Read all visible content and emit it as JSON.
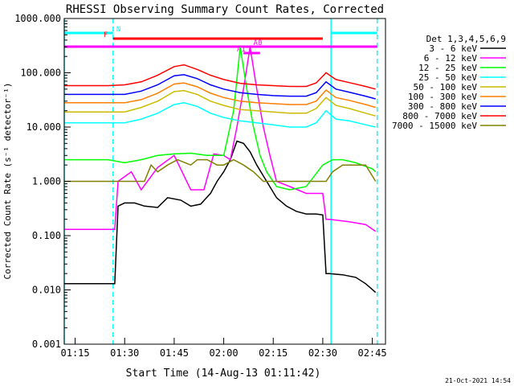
{
  "chart_data": {
    "type": "line",
    "title": "RHESSI Observing Summary Count Rates, Corrected",
    "ylabel": "Corrected Count Rate (s⁻¹ detector⁻¹)",
    "xlabel": "Start Time (14-Aug-13 01:11:42)",
    "timestamp": "21-Oct-2021 14:54",
    "y_scale": "log",
    "ylim": [
      0.001,
      1000
    ],
    "xlim": [
      "01:11:42",
      "02:49:00"
    ],
    "x_ticks": [
      "01:15",
      "01:30",
      "01:45",
      "02:00",
      "02:15",
      "02:30",
      "02:45"
    ],
    "y_ticks": [
      "1000.000",
      "100.000",
      "10.000",
      "1.000",
      "0.100",
      "0.010",
      "0.001"
    ],
    "legend": {
      "title": "Det 1,3,4,5,6,9",
      "placement": "right",
      "entries": [
        "3 - 6 keV",
        "6 - 12 keV",
        "12 - 25 keV",
        "25 - 50 keV",
        "50 - 100 keV",
        "100 - 300 keV",
        "300 - 800 keV",
        "800 - 7000 keV",
        "7000 - 15000 keV"
      ]
    },
    "series": [
      {
        "name": "3 - 6 keV",
        "color": "#000000",
        "x": [
          "01:11:42",
          "01:25:00",
          "01:27:00",
          "01:28:00",
          "01:30:00",
          "01:33:00",
          "01:36:00",
          "01:40:00",
          "01:43:00",
          "01:47:00",
          "01:50:00",
          "01:53:00",
          "01:56:00",
          "01:58:00",
          "02:00:00",
          "02:02:00",
          "02:04:00",
          "02:06:00",
          "02:08:00",
          "02:10:00",
          "02:13:00",
          "02:16:00",
          "02:19:00",
          "02:22:00",
          "02:25:00",
          "02:28:00",
          "02:30:00",
          "02:31:00",
          "02:32:00",
          "02:36:00",
          "02:40:00",
          "02:43:00",
          "02:46:00"
        ],
        "y": [
          0.013,
          0.013,
          0.013,
          0.35,
          0.4,
          0.4,
          0.35,
          0.33,
          0.5,
          0.45,
          0.35,
          0.38,
          0.6,
          1.0,
          1.5,
          2.5,
          5.5,
          5.0,
          3.5,
          2.0,
          1.0,
          0.5,
          0.35,
          0.28,
          0.25,
          0.25,
          0.24,
          0.02,
          0.02,
          0.019,
          0.017,
          0.013,
          0.009
        ]
      },
      {
        "name": "6 - 12 keV",
        "color": "#ff00ff",
        "x": [
          "01:11:42",
          "01:25:00",
          "01:27:00",
          "01:28:00",
          "01:32:00",
          "01:35:00",
          "01:40:00",
          "01:45:00",
          "01:50:00",
          "01:54:00",
          "01:57:00",
          "02:00:00",
          "02:02:00",
          "02:04:00",
          "02:06:00",
          "02:08:00",
          "02:10:00",
          "02:12:00",
          "02:14:00",
          "02:16:00",
          "02:20:00",
          "02:25:00",
          "02:30:00",
          "02:31:00",
          "02:32:00",
          "02:38:00",
          "02:43:00",
          "02:46:00"
        ],
        "y": [
          0.13,
          0.13,
          0.13,
          1.0,
          1.5,
          0.7,
          1.8,
          3.0,
          0.7,
          0.7,
          3.2,
          3.0,
          2.5,
          10,
          50,
          300,
          50,
          10,
          3,
          1.0,
          0.8,
          0.6,
          0.6,
          0.2,
          0.2,
          0.18,
          0.16,
          0.12
        ]
      },
      {
        "name": "12 - 25 keV",
        "color": "#00ff00",
        "x": [
          "01:11:42",
          "01:20:00",
          "01:25:00",
          "01:30:00",
          "01:35:00",
          "01:40:00",
          "01:45:00",
          "01:50:00",
          "01:55:00",
          "02:00:00",
          "02:03:00",
          "02:05:00",
          "02:07:00",
          "02:09:00",
          "02:11:00",
          "02:13:00",
          "02:16:00",
          "02:20:00",
          "02:25:00",
          "02:30:00",
          "02:33:00",
          "02:36:00",
          "02:40:00",
          "02:45:00",
          "02:46:00"
        ],
        "y": [
          2.5,
          2.5,
          2.5,
          2.2,
          2.5,
          3.0,
          3.2,
          3.3,
          3.0,
          3.0,
          20,
          300,
          50,
          10,
          3,
          1.5,
          0.8,
          0.7,
          0.8,
          2.0,
          2.5,
          2.5,
          2.2,
          1.7,
          1.5
        ]
      },
      {
        "name": "25 - 50 keV",
        "color": "#00ffff",
        "x": [
          "01:11:42",
          "01:20:00",
          "01:25:00",
          "01:30:00",
          "01:35:00",
          "01:40:00",
          "01:45:00",
          "01:48:00",
          "01:52:00",
          "01:56:00",
          "02:00:00",
          "02:05:00",
          "02:10:00",
          "02:15:00",
          "02:20:00",
          "02:25:00",
          "02:28:00",
          "02:31:00",
          "02:34:00",
          "02:38:00",
          "02:43:00",
          "02:46:00"
        ],
        "y": [
          12,
          12,
          12,
          12,
          14,
          18,
          26,
          28,
          24,
          18,
          15,
          13,
          12,
          11,
          10,
          10,
          12,
          20,
          14,
          13,
          11,
          10
        ]
      },
      {
        "name": "50 - 100 keV",
        "color": "#ccbb00",
        "x": [
          "01:11:42",
          "01:20:00",
          "01:25:00",
          "01:30:00",
          "01:35:00",
          "01:40:00",
          "01:45:00",
          "01:48:00",
          "01:52:00",
          "01:56:00",
          "02:00:00",
          "02:05:00",
          "02:10:00",
          "02:15:00",
          "02:20:00",
          "02:25:00",
          "02:28:00",
          "02:31:00",
          "02:34:00",
          "02:38:00",
          "02:43:00",
          "02:46:00"
        ],
        "y": [
          19,
          19,
          19,
          19,
          23,
          30,
          45,
          47,
          40,
          30,
          25,
          21,
          20,
          19,
          18,
          18,
          22,
          35,
          25,
          22,
          18,
          16
        ]
      },
      {
        "name": "100 - 300 keV",
        "color": "#ff7f00",
        "x": [
          "01:11:42",
          "01:20:00",
          "01:25:00",
          "01:30:00",
          "01:35:00",
          "01:40:00",
          "01:45:00",
          "01:48:00",
          "01:52:00",
          "01:56:00",
          "02:00:00",
          "02:05:00",
          "02:10:00",
          "02:15:00",
          "02:20:00",
          "02:25:00",
          "02:28:00",
          "02:31:00",
          "02:34:00",
          "02:38:00",
          "02:43:00",
          "02:46:00"
        ],
        "y": [
          28,
          28,
          28,
          28,
          32,
          42,
          62,
          65,
          55,
          42,
          35,
          30,
          28,
          27,
          26,
          26,
          30,
          48,
          35,
          31,
          26,
          23
        ]
      },
      {
        "name": "300 - 800 keV",
        "color": "#0000ff",
        "x": [
          "01:11:42",
          "01:20:00",
          "01:25:00",
          "01:30:00",
          "01:35:00",
          "01:40:00",
          "01:45:00",
          "01:48:00",
          "01:52:00",
          "01:56:00",
          "02:00:00",
          "02:05:00",
          "02:10:00",
          "02:15:00",
          "02:20:00",
          "02:25:00",
          "02:28:00",
          "02:31:00",
          "02:34:00",
          "02:38:00",
          "02:43:00",
          "02:46:00"
        ],
        "y": [
          40,
          40,
          40,
          40,
          46,
          60,
          88,
          92,
          78,
          60,
          50,
          43,
          40,
          38,
          37,
          37,
          43,
          68,
          50,
          44,
          37,
          33
        ]
      },
      {
        "name": "800 - 7000 keV",
        "color": "#ff0000",
        "x": [
          "01:11:42",
          "01:20:00",
          "01:25:00",
          "01:30:00",
          "01:35:00",
          "01:40:00",
          "01:45:00",
          "01:48:00",
          "01:52:00",
          "01:56:00",
          "02:00:00",
          "02:05:00",
          "02:10:00",
          "02:15:00",
          "02:20:00",
          "02:25:00",
          "02:28:00",
          "02:31:00",
          "02:34:00",
          "02:38:00",
          "02:43:00",
          "02:46:00"
        ],
        "y": [
          58,
          58,
          58,
          60,
          68,
          90,
          130,
          140,
          115,
          90,
          75,
          64,
          60,
          58,
          56,
          56,
          65,
          100,
          75,
          66,
          56,
          50
        ]
      },
      {
        "name": "7000 - 15000 keV",
        "color": "#808000",
        "x": [
          "01:11:42",
          "01:30:00",
          "01:36:00",
          "01:38:00",
          "01:40:00",
          "01:43:00",
          "01:46:00",
          "01:50:00",
          "01:52:00",
          "01:55:00",
          "01:58:00",
          "02:00:00",
          "02:03:00",
          "02:06:00",
          "02:09:00",
          "02:12:00",
          "02:15:00",
          "02:20:00",
          "02:25:00",
          "02:31:00",
          "02:33:00",
          "02:36:00",
          "02:40:00",
          "02:43:00",
          "02:46:00"
        ],
        "y": [
          1,
          1,
          1,
          2,
          1.5,
          2,
          2.5,
          2,
          2.5,
          2.5,
          2,
          2,
          2.5,
          2,
          1.5,
          1,
          1,
          1,
          1,
          1,
          1.5,
          2,
          2,
          2,
          1
        ]
      }
    ],
    "annotations": {
      "flags": [
        {
          "label": "N",
          "color": "#00ffff",
          "segments": [
            [
              "01:11:42",
              "01:26:30"
            ],
            [
              "02:32:30",
              "02:46:30"
            ]
          ]
        },
        {
          "label": "F",
          "color": "#ff0000",
          "segments": [
            [
              "01:26:30",
              "02:30:00"
            ]
          ]
        },
        {
          "label": "A0",
          "color": "#ff00ff",
          "segments": [
            [
              "01:11:42",
              "02:46:30"
            ]
          ]
        },
        {
          "label": "A1",
          "color": "#ff00ff",
          "segments": [
            [
              "02:06:00",
              "02:11:00"
            ]
          ]
        }
      ],
      "vlines": [
        {
          "x": "01:11:42",
          "style": "solid",
          "color": "#00ffff"
        },
        {
          "x": "01:26:30",
          "style": "dashed",
          "color": "#00ffff"
        },
        {
          "x": "02:32:30",
          "style": "solid",
          "color": "#00ffff"
        },
        {
          "x": "02:46:30",
          "style": "dashed",
          "color": "#00ffff"
        }
      ]
    }
  }
}
